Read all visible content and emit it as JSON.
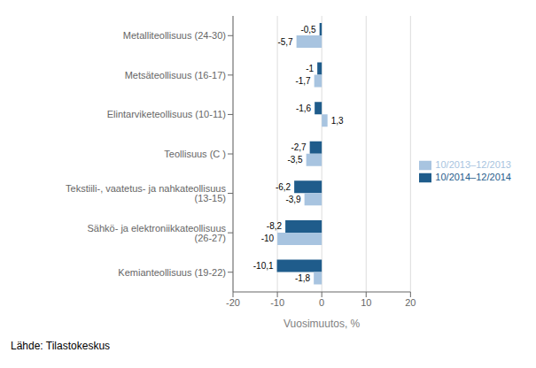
{
  "chart_data": {
    "type": "bar",
    "orientation": "horizontal",
    "categories": [
      "Kemianteollisuus (19-22)",
      "Sähkö- ja elektroniikkateollisuus (26-27)",
      "Tekstiili-, vaatetus- ja nahkateollisuus (13-15)",
      "Teollisuus (C )",
      "Elintarviketeollisuus (10-11)",
      "Metsäteollisuus (16-17)",
      "Metalliteollisuus (24-30)"
    ],
    "series": [
      {
        "name": "10/2014–12/2014",
        "color": "#1F5C8B",
        "values": [
          -10.1,
          -8.2,
          -6.2,
          -2.7,
          -1.6,
          -1.0,
          -0.5
        ],
        "value_labels": [
          "-10,1",
          "-8,2",
          "-6,2",
          "-2,7",
          "-1,6",
          "-1",
          "-0,5"
        ]
      },
      {
        "name": "10/2013–12/2013",
        "color": "#A8C4E0",
        "values": [
          -1.8,
          -10.0,
          -3.9,
          -3.5,
          1.3,
          -1.7,
          -5.7
        ],
        "value_labels": [
          "-1,8",
          "-10",
          "-3,9",
          "-3,5",
          "1,3",
          "-1,7",
          "-5,7"
        ]
      }
    ],
    "xlabel": "Vuosimuutos, %",
    "xlim": [
      -20,
      20
    ],
    "xticks": [
      -20,
      -10,
      0,
      10,
      20
    ],
    "grid": true,
    "legend": "right",
    "data_labels": true,
    "annotations": [
      "Lähde: Tilastokeskus"
    ]
  }
}
